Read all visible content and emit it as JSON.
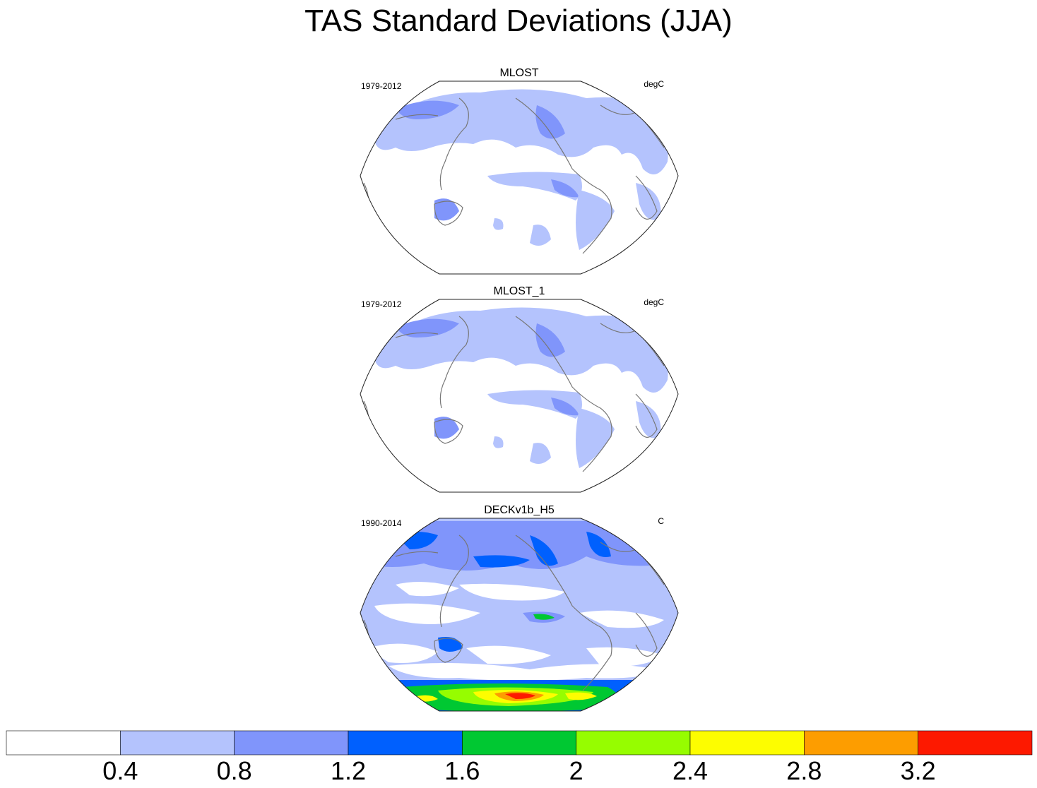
{
  "title": "TAS Standard Deviations (JJA)",
  "panels": [
    {
      "label": "MLOST",
      "period": "1979-2012",
      "units": "degC"
    },
    {
      "label": "MLOST_1",
      "period": "1979-2012",
      "units": "degC"
    },
    {
      "label": "DECKv1b_H5",
      "period": "1990-2014",
      "units": "C"
    }
  ],
  "colorbar": {
    "levels": [
      0.4,
      0.8,
      1.2,
      1.6,
      2,
      2.4,
      2.8,
      3.2
    ],
    "tick_labels": [
      "0.4",
      "0.8",
      "1.2",
      "1.6",
      "2",
      "2.4",
      "2.8",
      "3.2"
    ],
    "colors": [
      "#ffffff",
      "#b4c3fd",
      "#8095fb",
      "#0060fe",
      "#00c832",
      "#96fd00",
      "#fdfd00",
      "#fd9d00",
      "#fd1900"
    ]
  },
  "projection": "Winkel tripel",
  "coastline_color": "#777777"
}
